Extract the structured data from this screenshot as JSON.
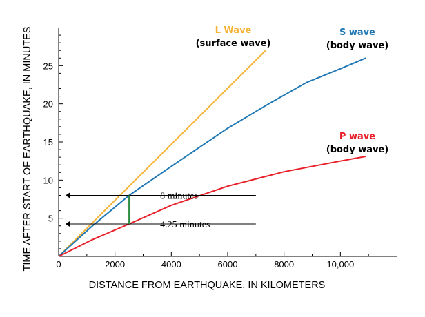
{
  "chart_data": {
    "type": "line",
    "title": "",
    "xlabel": "DISTANCE FROM EARTHQUAKE, IN KILOMETERS",
    "ylabel": "TIME AFTER START OF EARTHQUAKE, IN MINUTES",
    "xlim": [
      0,
      12000
    ],
    "ylim": [
      0,
      30
    ],
    "x_ticks": [
      0,
      2000,
      4000,
      6000,
      8000,
      10000
    ],
    "x_tick_labels": [
      "0",
      "2000",
      "4000",
      "6000",
      "8000",
      "10,000"
    ],
    "y_ticks": [
      5,
      10,
      15,
      20,
      25
    ],
    "y_tick_labels": [
      "5",
      "10",
      "15",
      "20",
      "25"
    ],
    "grid": false,
    "series": [
      {
        "name": "L Wave",
        "subtitle": "(surface wave)",
        "color": "#f5b335",
        "points": [
          [
            0,
            0
          ],
          [
            7350,
            27.0
          ]
        ]
      },
      {
        "name": "S wave",
        "subtitle": "(body wave)",
        "color": "#1f78b4",
        "points": [
          [
            0,
            0
          ],
          [
            1200,
            4.0
          ],
          [
            2500,
            8.0
          ],
          [
            4000,
            11.8
          ],
          [
            6000,
            16.8
          ],
          [
            7500,
            20.1
          ],
          [
            8800,
            22.8
          ],
          [
            10000,
            24.6
          ],
          [
            10900,
            26.0
          ]
        ]
      },
      {
        "name": "P wave",
        "subtitle": "(body wave)",
        "color": "#e8202a",
        "points": [
          [
            0,
            0
          ],
          [
            1200,
            2.2
          ],
          [
            2500,
            4.25
          ],
          [
            4000,
            6.7
          ],
          [
            6000,
            9.2
          ],
          [
            8000,
            11.1
          ],
          [
            10000,
            12.5
          ],
          [
            10900,
            13.1
          ]
        ]
      }
    ],
    "annotations": [
      {
        "label": "8 minutes",
        "y": 8,
        "x_from": 2500,
        "x_to": 7000
      },
      {
        "label": "4.25 minutes",
        "y": 4.25,
        "x_from": 2500,
        "x_to": 7000
      }
    ],
    "lag_marker": {
      "x": 2500,
      "y_from": 4.25,
      "y_to": 8,
      "color": "#2e8b3e"
    }
  }
}
